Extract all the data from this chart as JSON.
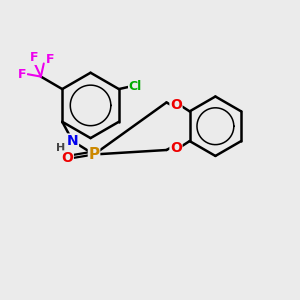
{
  "bg_color": "#ebebeb",
  "bond_color": "#000000",
  "atom_colors": {
    "F": "#ee00ee",
    "Cl": "#00aa00",
    "N": "#0000ee",
    "H": "#444444",
    "O": "#ee0000",
    "P": "#cc8800"
  },
  "figsize": [
    3.0,
    3.0
  ],
  "dpi": 100
}
